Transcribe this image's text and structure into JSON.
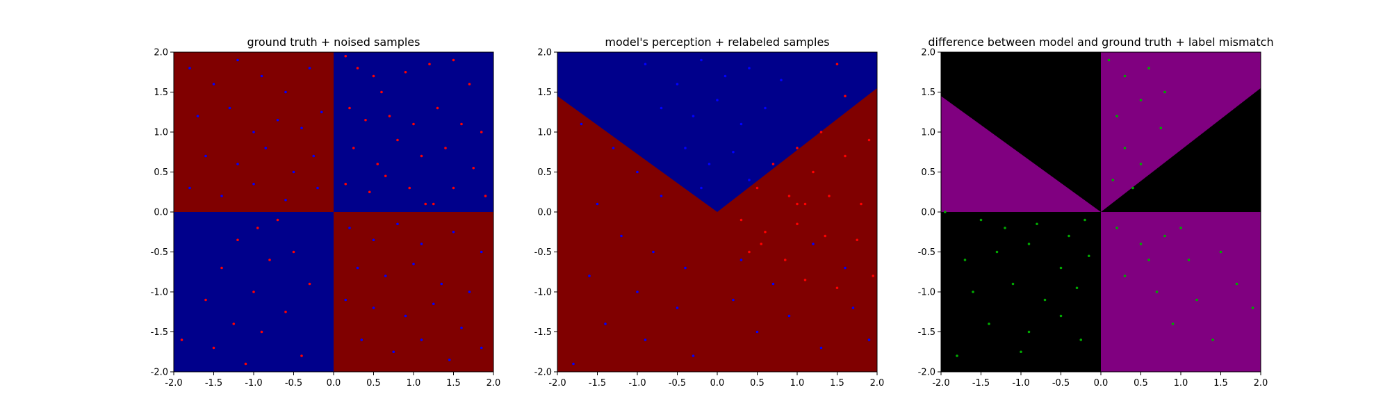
{
  "chart_data": [
    {
      "type": "scatter",
      "title": "ground truth + noised samples",
      "xlim": [
        -2,
        2
      ],
      "ylim": [
        -2,
        2
      ],
      "xticks": [
        "-2.0",
        "-1.5",
        "-1.0",
        "-0.5",
        "0.0",
        "0.5",
        "1.0",
        "1.5",
        "2.0"
      ],
      "yticks": [
        "-2.0",
        "-1.5",
        "-1.0",
        "-0.5",
        "0.0",
        "0.5",
        "1.0",
        "1.5",
        "2.0"
      ],
      "background_regions": "checkerboard: top-left and bottom-right red, top-right and bottom-left blue",
      "region_colors": {
        "red": "#800000",
        "blue": "#00008b"
      },
      "series": [
        {
          "color": "#ff0000",
          "points": [
            [
              0.15,
              1.95
            ],
            [
              0.3,
              1.8
            ],
            [
              0.5,
              1.7
            ],
            [
              0.6,
              1.5
            ],
            [
              0.9,
              1.75
            ],
            [
              1.2,
              1.85
            ],
            [
              1.5,
              1.9
            ],
            [
              1.7,
              1.6
            ],
            [
              0.2,
              1.3
            ],
            [
              0.4,
              1.15
            ],
            [
              0.7,
              1.2
            ],
            [
              1.0,
              1.1
            ],
            [
              1.3,
              1.3
            ],
            [
              1.6,
              1.1
            ],
            [
              1.85,
              1.0
            ],
            [
              0.25,
              0.8
            ],
            [
              0.55,
              0.6
            ],
            [
              0.8,
              0.9
            ],
            [
              1.1,
              0.7
            ],
            [
              1.4,
              0.8
            ],
            [
              1.75,
              0.55
            ],
            [
              0.15,
              0.35
            ],
            [
              0.45,
              0.25
            ],
            [
              0.65,
              0.45
            ],
            [
              0.95,
              0.3
            ],
            [
              1.15,
              0.1
            ],
            [
              1.25,
              0.1
            ],
            [
              1.5,
              0.3
            ],
            [
              1.9,
              0.2
            ],
            [
              -0.7,
              -0.1
            ],
            [
              -0.95,
              -0.2
            ],
            [
              -1.2,
              -0.35
            ],
            [
              -0.5,
              -0.5
            ],
            [
              -0.8,
              -0.6
            ],
            [
              -1.4,
              -0.7
            ],
            [
              -0.3,
              -0.9
            ],
            [
              -1.0,
              -1.0
            ],
            [
              -1.6,
              -1.1
            ],
            [
              -0.6,
              -1.25
            ],
            [
              -1.25,
              -1.4
            ],
            [
              -0.9,
              -1.5
            ],
            [
              -1.5,
              -1.7
            ],
            [
              -0.4,
              -1.8
            ],
            [
              -1.1,
              -1.9
            ],
            [
              -1.9,
              -1.6
            ]
          ]
        },
        {
          "color": "#0000ff",
          "points": [
            [
              -1.8,
              1.8
            ],
            [
              -1.5,
              1.6
            ],
            [
              -1.2,
              1.9
            ],
            [
              -0.9,
              1.7
            ],
            [
              -0.6,
              1.5
            ],
            [
              -0.3,
              1.8
            ],
            [
              -1.7,
              1.2
            ],
            [
              -1.3,
              1.3
            ],
            [
              -1.0,
              1.0
            ],
            [
              -0.7,
              1.15
            ],
            [
              -0.4,
              1.05
            ],
            [
              -0.15,
              1.25
            ],
            [
              -1.6,
              0.7
            ],
            [
              -1.2,
              0.6
            ],
            [
              -0.85,
              0.8
            ],
            [
              -0.5,
              0.5
            ],
            [
              -0.25,
              0.7
            ],
            [
              -1.8,
              0.3
            ],
            [
              -1.4,
              0.2
            ],
            [
              -1.0,
              0.35
            ],
            [
              -0.6,
              0.15
            ],
            [
              -0.2,
              0.3
            ],
            [
              0.2,
              -0.2
            ],
            [
              0.5,
              -0.35
            ],
            [
              0.8,
              -0.15
            ],
            [
              1.1,
              -0.4
            ],
            [
              1.5,
              -0.25
            ],
            [
              1.85,
              -0.5
            ],
            [
              0.3,
              -0.7
            ],
            [
              0.65,
              -0.8
            ],
            [
              1.0,
              -0.65
            ],
            [
              1.35,
              -0.9
            ],
            [
              1.7,
              -1.0
            ],
            [
              0.15,
              -1.1
            ],
            [
              0.5,
              -1.2
            ],
            [
              0.9,
              -1.3
            ],
            [
              1.25,
              -1.15
            ],
            [
              1.6,
              -1.45
            ],
            [
              0.35,
              -1.6
            ],
            [
              0.75,
              -1.75
            ],
            [
              1.1,
              -1.6
            ],
            [
              1.45,
              -1.85
            ],
            [
              1.85,
              -1.7
            ]
          ]
        }
      ]
    },
    {
      "type": "scatter",
      "title": "model's perception + relabeled samples",
      "xlim": [
        -2,
        2
      ],
      "ylim": [
        -2,
        2
      ],
      "xticks": [
        "-2.0",
        "-1.5",
        "-1.0",
        "-0.5",
        "0.0",
        "0.5",
        "1.0",
        "1.5",
        "2.0"
      ],
      "yticks": [
        "-2.0",
        "-1.5",
        "-1.0",
        "-0.5",
        "0.0",
        "0.5",
        "1.0",
        "1.5",
        "2.0"
      ],
      "background_regions": "blue wedge above lines from (0,0) to (-2,1.45) and (0,0) to (2,1.55); red elsewhere",
      "boundary_left": [
        [
          -2,
          1.45
        ],
        [
          0,
          0
        ]
      ],
      "boundary_right": [
        [
          0,
          0
        ],
        [
          2,
          1.55
        ]
      ],
      "region_colors": {
        "red": "#800000",
        "blue": "#00008b"
      },
      "series": [
        {
          "color": "#0000ff",
          "points": [
            [
              -0.9,
              1.85
            ],
            [
              -0.5,
              1.6
            ],
            [
              -0.2,
              1.9
            ],
            [
              0.1,
              1.7
            ],
            [
              0.4,
              1.8
            ],
            [
              0.8,
              1.65
            ],
            [
              -0.7,
              1.3
            ],
            [
              -0.3,
              1.2
            ],
            [
              0.0,
              1.4
            ],
            [
              0.3,
              1.1
            ],
            [
              0.6,
              1.3
            ],
            [
              -0.4,
              0.8
            ],
            [
              -0.1,
              0.6
            ],
            [
              0.2,
              0.75
            ],
            [
              0.4,
              0.4
            ],
            [
              -0.2,
              0.3
            ],
            [
              -1.7,
              1.1
            ],
            [
              -1.3,
              0.8
            ],
            [
              -1.0,
              0.5
            ],
            [
              -0.7,
              0.2
            ],
            [
              -1.5,
              0.1
            ],
            [
              -1.2,
              -0.3
            ],
            [
              -0.8,
              -0.5
            ],
            [
              -0.4,
              -0.7
            ],
            [
              -1.6,
              -0.8
            ],
            [
              -1.0,
              -1.0
            ],
            [
              -0.5,
              -1.2
            ],
            [
              -1.4,
              -1.4
            ],
            [
              -0.9,
              -1.6
            ],
            [
              -0.3,
              -1.8
            ],
            [
              -1.8,
              -1.9
            ],
            [
              0.2,
              -1.1
            ],
            [
              0.5,
              -1.5
            ],
            [
              0.9,
              -1.3
            ],
            [
              1.3,
              -1.7
            ],
            [
              1.7,
              -1.2
            ],
            [
              0.3,
              -0.6
            ],
            [
              0.7,
              -0.9
            ],
            [
              1.2,
              -0.4
            ],
            [
              1.6,
              -0.7
            ],
            [
              1.9,
              -1.6
            ]
          ]
        },
        {
          "color": "#ff0000",
          "points": [
            [
              1.5,
              1.85
            ],
            [
              1.6,
              1.45
            ],
            [
              1.3,
              1.0
            ],
            [
              1.0,
              0.8
            ],
            [
              0.7,
              0.6
            ],
            [
              0.5,
              0.3
            ],
            [
              1.2,
              0.5
            ],
            [
              1.6,
              0.7
            ],
            [
              1.9,
              0.9
            ],
            [
              0.9,
              0.2
            ],
            [
              1.4,
              0.2
            ],
            [
              1.8,
              0.1
            ],
            [
              0.3,
              -0.1
            ],
            [
              0.6,
              -0.25
            ],
            [
              1.0,
              -0.15
            ],
            [
              1.35,
              -0.3
            ],
            [
              1.75,
              -0.35
            ],
            [
              0.4,
              -0.5
            ],
            [
              0.85,
              -0.6
            ],
            [
              1.1,
              -0.85
            ],
            [
              1.5,
              -0.95
            ],
            [
              1.95,
              -0.8
            ],
            [
              0.55,
              -0.4
            ],
            [
              1.0,
              0.1
            ],
            [
              1.1,
              0.1
            ]
          ]
        }
      ]
    },
    {
      "type": "scatter",
      "title": "difference between model and ground truth + label mismatch",
      "xlim": [
        -2,
        2
      ],
      "ylim": [
        -2,
        2
      ],
      "xticks": [
        "-2.0",
        "-1.5",
        "-1.0",
        "-0.5",
        "0.0",
        "0.5",
        "1.0",
        "1.5",
        "2.0"
      ],
      "yticks": [
        "-2.0",
        "-1.5",
        "-1.0",
        "-0.5",
        "0.0",
        "0.5",
        "1.0",
        "1.5",
        "2.0"
      ],
      "background_regions": "purple: triangle between (-2,0),(-2,1.45),(0,0); wedge above line (0,0)-(2,1.55) in x>0 up to top; bottom-right quadrant. black elsewhere",
      "region_colors": {
        "purple": "#800080",
        "black": "#000000"
      },
      "series": [
        {
          "color": "#00aa00",
          "points": [
            [
              0.1,
              1.9
            ],
            [
              0.3,
              1.7
            ],
            [
              0.6,
              1.8
            ],
            [
              0.8,
              1.5
            ],
            [
              0.2,
              1.2
            ],
            [
              0.5,
              1.4
            ],
            [
              0.75,
              1.05
            ],
            [
              0.3,
              0.8
            ],
            [
              0.5,
              0.6
            ],
            [
              0.15,
              0.4
            ],
            [
              0.4,
              0.3
            ],
            [
              -1.95,
              0.0
            ],
            [
              -1.5,
              -0.1
            ],
            [
              -1.2,
              -0.2
            ],
            [
              -0.8,
              -0.15
            ],
            [
              -0.4,
              -0.3
            ],
            [
              -0.2,
              -0.1
            ],
            [
              -1.7,
              -0.6
            ],
            [
              -1.3,
              -0.5
            ],
            [
              -0.9,
              -0.4
            ],
            [
              -0.5,
              -0.7
            ],
            [
              -0.15,
              -0.55
            ],
            [
              -1.6,
              -1.0
            ],
            [
              -1.1,
              -0.9
            ],
            [
              -0.7,
              -1.1
            ],
            [
              -0.3,
              -0.95
            ],
            [
              -1.4,
              -1.4
            ],
            [
              -0.9,
              -1.5
            ],
            [
              -0.5,
              -1.3
            ],
            [
              -1.8,
              -1.8
            ],
            [
              -1.0,
              -1.75
            ],
            [
              -0.25,
              -1.6
            ],
            [
              0.2,
              -0.2
            ],
            [
              0.5,
              -0.4
            ],
            [
              0.8,
              -0.3
            ],
            [
              1.1,
              -0.6
            ],
            [
              1.5,
              -0.5
            ],
            [
              0.3,
              -0.8
            ],
            [
              0.7,
              -1.0
            ],
            [
              1.2,
              -1.1
            ],
            [
              1.7,
              -0.9
            ],
            [
              0.9,
              -1.4
            ],
            [
              1.4,
              -1.6
            ],
            [
              1.9,
              -1.2
            ],
            [
              0.6,
              -0.6
            ],
            [
              1.0,
              -0.2
            ]
          ]
        }
      ]
    }
  ]
}
